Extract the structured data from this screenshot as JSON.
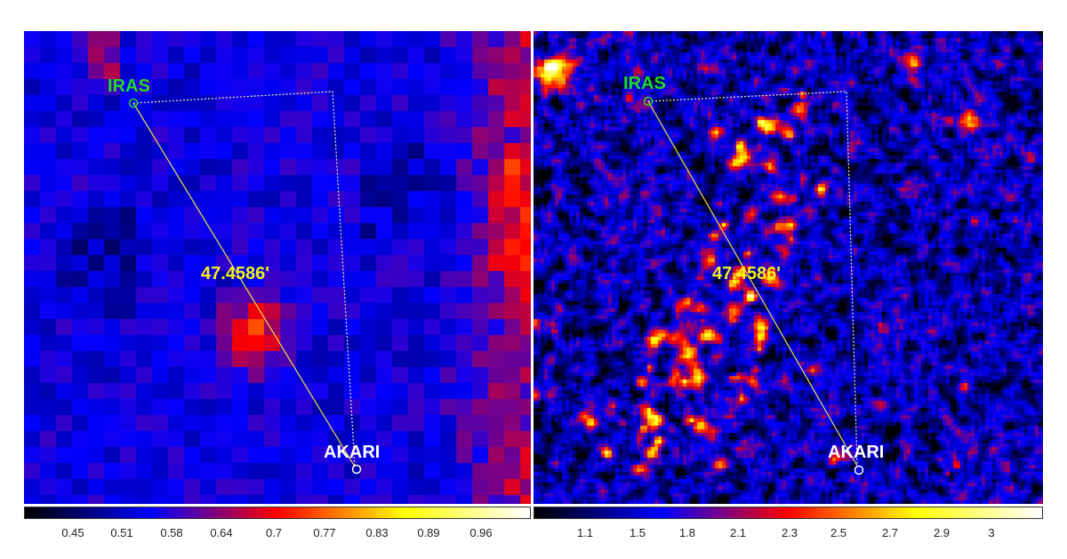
{
  "panels": {
    "left": {
      "labels": {
        "iras": "IRAS",
        "akari": "AKARI",
        "distance": "47.4586'"
      },
      "colorbar_ticks": [
        "0.45",
        "0.51",
        "0.58",
        "0.64",
        "0.7",
        "0.77",
        "0.83",
        "0.89",
        "0.96"
      ]
    },
    "right": {
      "labels": {
        "iras": "IRAS",
        "akari": "AKARI",
        "distance": "47.4586'"
      },
      "colorbar_ticks": [
        "1.1",
        "1.5",
        "1.8",
        "2.1",
        "2.3",
        "2.5",
        "2.7",
        "2.9",
        "3"
      ]
    }
  },
  "colors": {
    "iras_label": "#22dd22",
    "akari_label": "#ffffff",
    "distance_label": "#f4f01a",
    "measure_line": "#f0e040",
    "colormap": [
      "#000000",
      "#0000ff",
      "#ff0000",
      "#ffff00",
      "#ffffff"
    ]
  }
}
